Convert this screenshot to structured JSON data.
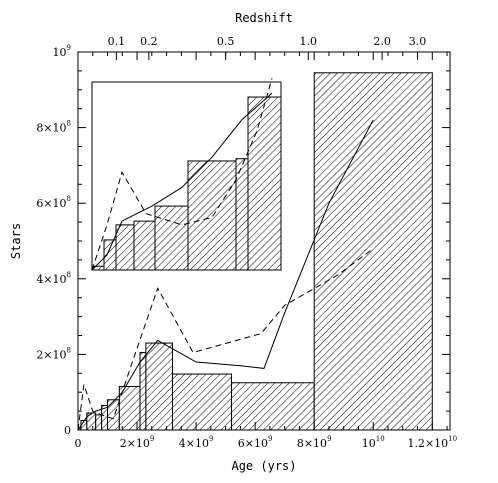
{
  "chart_data": {
    "type": "area",
    "xlabel": "Age (yrs)",
    "ylabel": "Stars",
    "top_axis_label": "Redshift",
    "xlim": [
      0,
      12600000000
    ],
    "ylim": [
      0,
      1000000000
    ],
    "x_ticks": [
      {
        "value": 0,
        "label": "0"
      },
      {
        "value": 2000000000,
        "label": "2×10",
        "exp": "9"
      },
      {
        "value": 4000000000,
        "label": "4×10",
        "exp": "9"
      },
      {
        "value": 6000000000,
        "label": "6×10",
        "exp": "9"
      },
      {
        "value": 8000000000,
        "label": "8×10",
        "exp": "9"
      },
      {
        "value": 10000000000,
        "label": "10",
        "exp": "10"
      },
      {
        "value": 12000000000,
        "label": "1.2×10",
        "exp": "10"
      }
    ],
    "y_ticks": [
      {
        "value": 0,
        "label": "0"
      },
      {
        "value": 200000000,
        "label": "2×10",
        "exp": "8"
      },
      {
        "value": 400000000,
        "label": "4×10",
        "exp": "8"
      },
      {
        "value": 600000000,
        "label": "6×10",
        "exp": "8"
      },
      {
        "value": 800000000,
        "label": "8×10",
        "exp": "8"
      },
      {
        "value": 1000000000,
        "label": "10",
        "exp": "9"
      }
    ],
    "redshift_ticks": [
      {
        "age": 1300000000,
        "label": "0.1"
      },
      {
        "age": 2400000000,
        "label": "0.2"
      },
      {
        "age": 5000000000,
        "label": "0.5"
      },
      {
        "age": 7800000000,
        "label": "1.0"
      },
      {
        "age": 10300000000,
        "label": "2.0"
      },
      {
        "age": 11500000000,
        "label": "3.0"
      }
    ],
    "histogram_bins": [
      {
        "x0": 0,
        "x1": 100000000,
        "value": 5000000
      },
      {
        "x0": 100000000,
        "x1": 300000000,
        "value": 25000000
      },
      {
        "x0": 300000000,
        "x1": 600000000,
        "value": 45000000
      },
      {
        "x0": 600000000,
        "x1": 800000000,
        "value": 40000000
      },
      {
        "x0": 800000000,
        "x1": 1000000000,
        "value": 65000000
      },
      {
        "x0": 1000000000,
        "x1": 1400000000,
        "value": 80000000
      },
      {
        "x0": 1400000000,
        "x1": 2100000000,
        "value": 115000000
      },
      {
        "x0": 2100000000,
        "x1": 2300000000,
        "value": 205000000
      },
      {
        "x0": 2300000000,
        "x1": 3200000000,
        "value": 230000000
      },
      {
        "x0": 3200000000,
        "x1": 5200000000,
        "value": 148000000
      },
      {
        "x0": 5200000000,
        "x1": 8000000000,
        "value": 125000000
      },
      {
        "x0": 8000000000,
        "x1": 12000000000,
        "value": 945000000
      }
    ],
    "series": [
      {
        "style": "solid",
        "x": [
          0,
          300000000,
          600000000,
          1000000000,
          1500000000,
          2100000000,
          2700000000,
          4000000000,
          5500000000,
          6300000000,
          7000000000,
          8500000000,
          10000000000
        ],
        "y": [
          0,
          35000000,
          50000000,
          60000000,
          100000000,
          180000000,
          237000000,
          180000000,
          170000000,
          163000000,
          310000000,
          600000000,
          820000000
        ]
      },
      {
        "style": "dashed",
        "x": [
          0,
          200000000,
          500000000,
          800000000,
          1200000000,
          1800000000,
          2700000000,
          3900000000,
          6200000000,
          7000000000,
          8800000000,
          10000000000
        ],
        "y": [
          0,
          120000000,
          50000000,
          40000000,
          30000000,
          170000000,
          375000000,
          205000000,
          255000000,
          330000000,
          410000000,
          480000000
        ]
      }
    ],
    "inset": {
      "xlim": [
        0,
        6300000000
      ],
      "ylim": [
        0,
        250000000
      ],
      "histogram_bins": [
        {
          "x0": 0,
          "x1": 400000000,
          "value": 5000000
        },
        {
          "x0": 400000000,
          "x1": 800000000,
          "value": 40000000
        },
        {
          "x0": 800000000,
          "x1": 1400000000,
          "value": 60000000
        },
        {
          "x0": 1400000000,
          "x1": 2100000000,
          "value": 65000000
        },
        {
          "x0": 2100000000,
          "x1": 3200000000,
          "value": 85000000
        },
        {
          "x0": 3200000000,
          "x1": 4800000000,
          "value": 145000000
        },
        {
          "x0": 4800000000,
          "x1": 5200000000,
          "value": 148000000
        },
        {
          "x0": 5200000000,
          "x1": 6300000000,
          "value": 230000000
        }
      ],
      "series": [
        {
          "style": "solid",
          "x": [
            0,
            500000000,
            1000000000,
            2000000000,
            3000000000,
            4000000000,
            5000000000,
            6000000000
          ],
          "y": [
            0,
            20000000,
            65000000,
            85000000,
            110000000,
            150000000,
            200000000,
            235000000
          ]
        },
        {
          "style": "dashed",
          "x": [
            0,
            500000000,
            1000000000,
            1800000000,
            3000000000,
            4000000000,
            4800000000,
            5500000000,
            6000000000
          ],
          "y": [
            0,
            60000000,
            130000000,
            75000000,
            60000000,
            70000000,
            120000000,
            185000000,
            255000000
          ]
        }
      ]
    }
  }
}
